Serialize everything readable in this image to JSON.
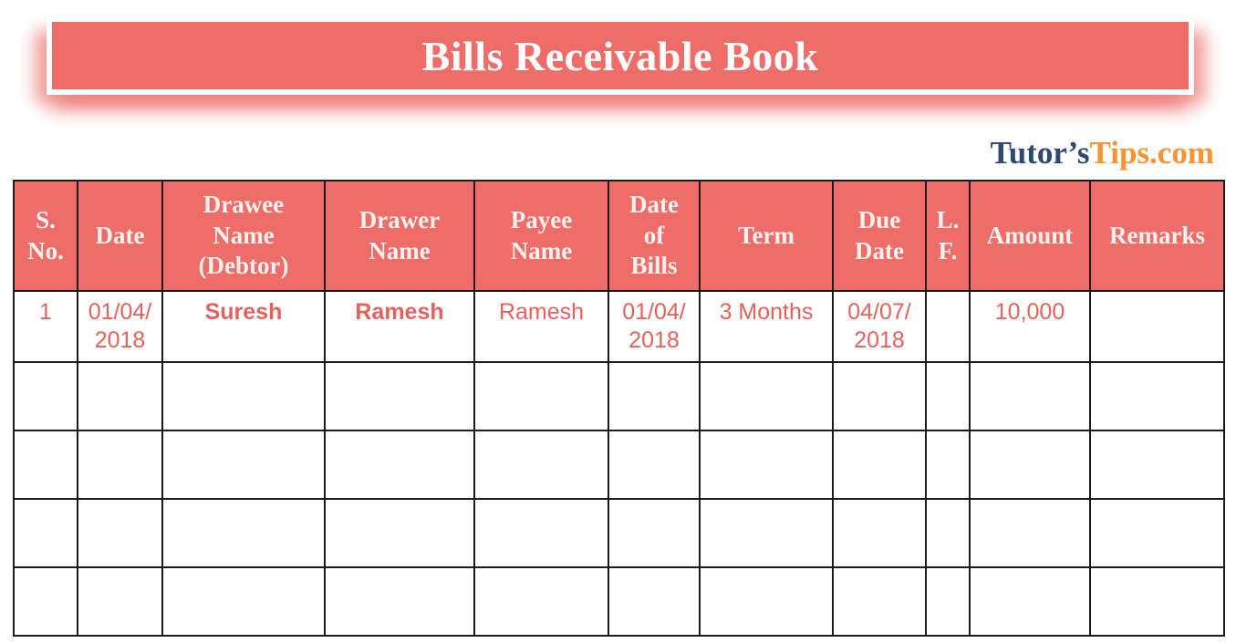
{
  "banner": {
    "title": "Bills Receivable Book"
  },
  "logo": {
    "prefix": "Tutor’s",
    "suffix": "Tips.com"
  },
  "colors": {
    "coral": "#EF6D68",
    "data_text": "#E4625C",
    "logo_navy": "#2F4A6E",
    "logo_orange": "#F79433",
    "header_text": "#FBF1EF",
    "border": "#1B1B1B"
  },
  "table": {
    "headers": [
      "S.\nNo.",
      "Date",
      "Drawee\nName\n(Debtor)",
      "Drawer\nName",
      "Payee\nName",
      "Date\nof\nBills",
      "Term",
      "Due\nDate",
      "L.\nF.",
      "Amount",
      "Remarks"
    ],
    "rows": [
      [
        "1",
        "01/04/\n2018",
        "Suresh",
        "Ramesh",
        "Ramesh",
        "01/04/\n2018",
        "3 Months",
        "04/07/\n2018",
        "",
        "10,000",
        ""
      ],
      [
        "",
        "",
        "",
        "",
        "",
        "",
        "",
        "",
        "",
        "",
        ""
      ],
      [
        "",
        "",
        "",
        "",
        "",
        "",
        "",
        "",
        "",
        "",
        ""
      ],
      [
        "",
        "",
        "",
        "",
        "",
        "",
        "",
        "",
        "",
        "",
        ""
      ],
      [
        "",
        "",
        "",
        "",
        "",
        "",
        "",
        "",
        "",
        "",
        ""
      ]
    ]
  }
}
